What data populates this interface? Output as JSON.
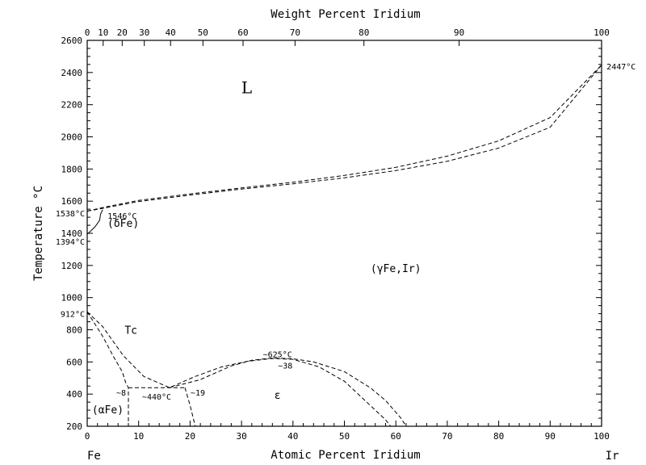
{
  "chart_data": {
    "type": "line",
    "title": "",
    "xlabel": "Atomic Percent Iridium",
    "xlabel_top": "Weight Percent Iridium",
    "ylabel": "Temperature °C",
    "xlim": [
      0,
      100
    ],
    "ylim": [
      200,
      2600
    ],
    "x_ticks": [
      0,
      10,
      20,
      30,
      40,
      50,
      60,
      70,
      80,
      90,
      100
    ],
    "y_ticks": [
      200,
      400,
      600,
      800,
      1000,
      1200,
      1400,
      1600,
      1800,
      2000,
      2200,
      2400,
      2600
    ],
    "top_ticks": [
      {
        "wt": 0,
        "at": 0
      },
      {
        "wt": 10,
        "at": 3.1
      },
      {
        "wt": 20,
        "at": 6.8
      },
      {
        "wt": 30,
        "at": 11.1
      },
      {
        "wt": 40,
        "at": 16.2
      },
      {
        "wt": 50,
        "at": 22.5
      },
      {
        "wt": 60,
        "at": 30.3
      },
      {
        "wt": 70,
        "at": 40.4
      },
      {
        "wt": 80,
        "at": 53.8
      },
      {
        "wt": 90,
        "at": 72.3
      },
      {
        "wt": 100,
        "at": 100
      }
    ],
    "grid": false,
    "series": [
      {
        "points": [
          [
            0,
            1538
          ],
          [
            3,
            1560
          ],
          [
            10,
            1605
          ],
          [
            20,
            1645
          ],
          [
            30,
            1682
          ],
          [
            40,
            1718
          ],
          [
            50,
            1760
          ],
          [
            60,
            1810
          ],
          [
            70,
            1880
          ],
          [
            80,
            1975
          ],
          [
            90,
            2120
          ],
          [
            100,
            2447
          ]
        ]
      },
      {
        "points": [
          [
            0,
            1538
          ],
          [
            3,
            1555
          ],
          [
            10,
            1598
          ],
          [
            20,
            1638
          ],
          [
            30,
            1675
          ],
          [
            40,
            1708
          ],
          [
            50,
            1745
          ],
          [
            60,
            1790
          ],
          [
            70,
            1848
          ],
          [
            80,
            1930
          ],
          [
            90,
            2060
          ],
          [
            100,
            2447
          ]
        ]
      },
      {
        "points": [
          [
            0,
            912
          ],
          [
            3,
            760
          ],
          [
            5,
            640
          ],
          [
            6.8,
            540
          ],
          [
            7.5,
            470
          ],
          [
            8,
            440
          ],
          [
            8,
            200
          ]
        ]
      },
      {
        "points": [
          [
            0,
            912
          ],
          [
            3,
            820
          ],
          [
            7,
            640
          ],
          [
            11,
            510
          ],
          [
            16,
            440
          ],
          [
            21,
            510
          ],
          [
            26,
            568
          ],
          [
            31,
            603
          ],
          [
            36,
            622
          ],
          [
            40,
            616
          ],
          [
            45,
            570
          ],
          [
            50,
            480
          ],
          [
            55,
            330
          ],
          [
            58,
            240
          ],
          [
            59,
            200
          ]
        ]
      },
      {
        "points": [
          [
            16,
            440
          ],
          [
            22,
            490
          ],
          [
            28,
            575
          ],
          [
            32,
            610
          ],
          [
            36,
            625
          ],
          [
            40,
            620
          ],
          [
            44,
            600
          ],
          [
            50,
            540
          ],
          [
            55,
            440
          ],
          [
            58,
            360
          ],
          [
            61,
            250
          ],
          [
            62,
            200
          ]
        ]
      },
      {
        "points": [
          [
            8,
            440
          ],
          [
            19,
            440
          ]
        ]
      },
      {
        "points": [
          [
            19,
            440
          ],
          [
            20,
            330
          ],
          [
            21,
            200
          ]
        ]
      },
      {
        "points": [
          [
            0,
            1394
          ],
          [
            1.5,
            1440
          ],
          [
            2.4,
            1480
          ],
          [
            2.6,
            1520
          ],
          [
            3,
            1546
          ]
        ]
      }
    ],
    "annotations": [
      {
        "text": "L",
        "x": 31,
        "y": 2290,
        "style": "region-big"
      },
      {
        "text": "(γFe,Ir)",
        "x": 60,
        "y": 1180,
        "style": "region"
      },
      {
        "text": "(δFe)",
        "x": 7,
        "y": 1460,
        "style": "region"
      },
      {
        "text": "(αFe)",
        "x": 4,
        "y": 300,
        "style": "region"
      },
      {
        "text": "ε",
        "x": 37,
        "y": 390,
        "style": "region"
      },
      {
        "text": "Tc",
        "x": 8.5,
        "y": 795,
        "style": "region"
      },
      {
        "text": "1538°C",
        "x": 0,
        "y": 1525,
        "anchor": "end",
        "style": "annot"
      },
      {
        "text": "1546°C",
        "x": 3.5,
        "y": 1510,
        "anchor": "start",
        "style": "annot"
      },
      {
        "text": "1394°C",
        "x": 0,
        "y": 1350,
        "anchor": "end",
        "style": "annot"
      },
      {
        "text": "912°C",
        "x": 0,
        "y": 900,
        "anchor": "end",
        "style": "annot"
      },
      {
        "text": "2447°C",
        "x": 100.5,
        "y": 2440,
        "anchor": "start",
        "style": "annot"
      },
      {
        "text": "~625°C",
        "x": 37,
        "y": 650,
        "style": "annot"
      },
      {
        "text": "~38",
        "x": 38.5,
        "y": 580,
        "style": "annot"
      },
      {
        "text": "~8",
        "x": 6.6,
        "y": 410,
        "style": "annot"
      },
      {
        "text": "~440°C",
        "x": 13.5,
        "y": 385,
        "style": "annot"
      },
      {
        "text": "~19",
        "x": 21.5,
        "y": 410,
        "style": "annot"
      }
    ],
    "x_end_labels": [
      "Fe",
      "Ir"
    ]
  }
}
